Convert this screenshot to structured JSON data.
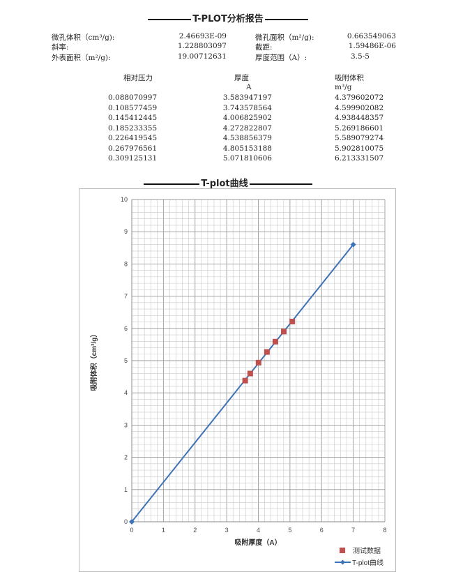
{
  "report_title": "T-PLOT分析报告",
  "summary": [
    {
      "label": "微孔体积（cm³/g):",
      "value": "2.46693E-09"
    },
    {
      "label": "微孔面积（m²/g):",
      "value": "0.663549063"
    },
    {
      "label": "斜率:",
      "value": "1.228803097"
    },
    {
      "label": "截距:",
      "value": "1.59486E-06"
    },
    {
      "label": "外表面积（m²/g):",
      "value": "19.00712631"
    },
    {
      "label": "厚度范围（A）:",
      "value": "3.5-5"
    }
  ],
  "table": {
    "headers": [
      "相对压力",
      "厚度",
      "吸附体积"
    ],
    "units": [
      "",
      "A",
      "m³/g"
    ],
    "rows": [
      [
        "0.088070997",
        "3.583947197",
        "4.379602072"
      ],
      [
        "0.108577459",
        "3.743578564",
        "4.599902082"
      ],
      [
        "0.145412445",
        "4.006825902",
        "4.938448357"
      ],
      [
        "0.185233355",
        "4.272822807",
        "5.269186601"
      ],
      [
        "0.226419545",
        "4.538856379",
        "5.589079274"
      ],
      [
        "0.267976561",
        "4.805153188",
        "5.902810075"
      ],
      [
        "0.309125131",
        "5.071810606",
        "6.213331507"
      ]
    ]
  },
  "chart_title": "T-plot曲线",
  "chart_data": {
    "type": "scatter",
    "xlabel": "吸附厚度（A）",
    "ylabel": "吸附体积（cm³/g）",
    "xlim": [
      0,
      8
    ],
    "ylim": [
      0,
      10
    ],
    "xticks": [
      "0",
      "1",
      "2",
      "3",
      "4",
      "5",
      "6",
      "7",
      "8"
    ],
    "yticks": [
      "0",
      "1",
      "2",
      "3",
      "4",
      "5",
      "6",
      "7",
      "8",
      "9",
      "10"
    ],
    "grid": true,
    "legend_position": "bottom-right",
    "series": [
      {
        "name": "测试数据",
        "kind": "markers",
        "color": "#c0504d",
        "x": [
          3.583947197,
          3.743578564,
          4.006825902,
          4.272822807,
          4.538856379,
          4.805153188,
          5.071810606
        ],
        "y": [
          4.379602072,
          4.599902082,
          4.938448357,
          5.269186601,
          5.589079274,
          5.902810075,
          6.213331507
        ]
      },
      {
        "name": "T-plot曲线",
        "kind": "line",
        "color": "#3c72b8",
        "x": [
          0,
          7
        ],
        "y": [
          0,
          8.6
        ]
      }
    ]
  }
}
